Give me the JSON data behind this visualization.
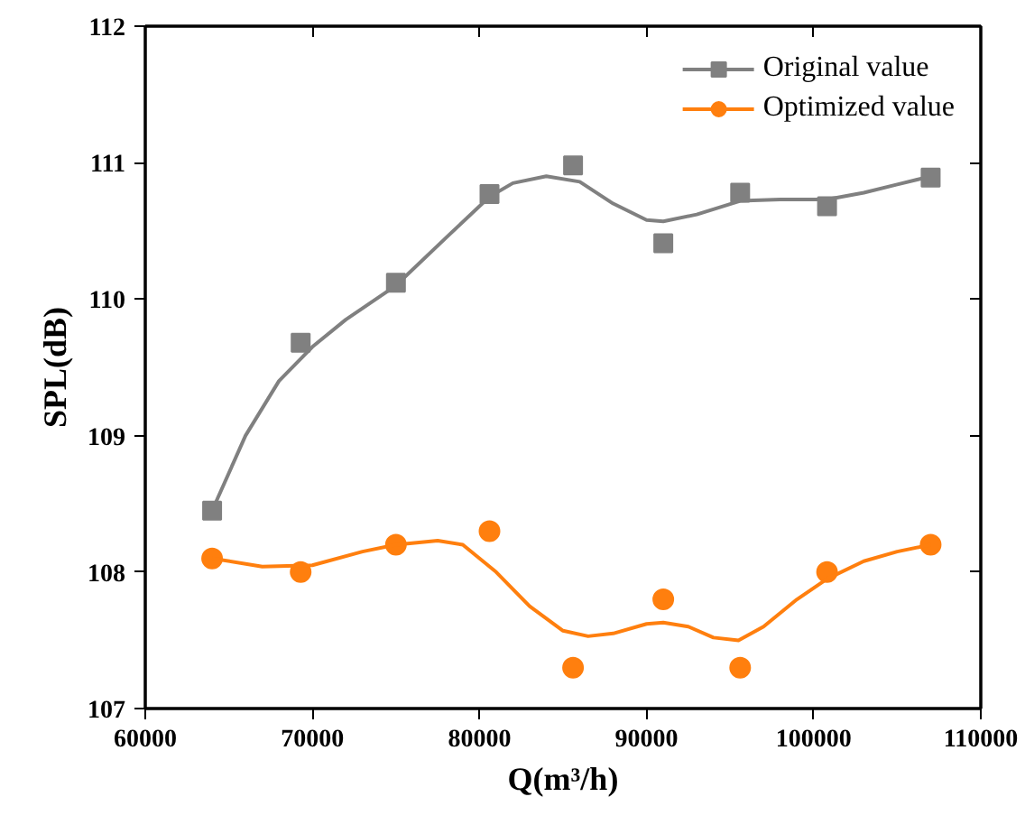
{
  "chart_data": {
    "type": "scatter",
    "xlabel": "Q(m³/h)",
    "ylabel": "SPL(dB)",
    "xlim": [
      60000,
      110000
    ],
    "xticks": [
      60000,
      70000,
      80000,
      90000,
      100000,
      110000
    ],
    "ylim": [
      107,
      112
    ],
    "yticks": [
      107,
      108,
      109,
      110,
      111,
      112
    ],
    "grid": false,
    "legend": "top right",
    "series": [
      {
        "name": "Original value",
        "marker": "square",
        "color": "#808080",
        "x": [
          64000,
          69300,
          75000,
          80600,
          85600,
          91000,
          95600,
          100800,
          107000
        ],
        "values": [
          108.45,
          109.68,
          110.12,
          110.77,
          110.98,
          110.41,
          110.78,
          110.68,
          110.89
        ]
      },
      {
        "type": "line",
        "color": "#808080",
        "x": [
          64000,
          66000,
          68000,
          70000,
          72000,
          75000,
          78000,
          80600,
          82000,
          84000,
          86000,
          88000,
          90000,
          91000,
          93000,
          95600,
          98000,
          100800,
          103000,
          105000,
          107000
        ],
        "values": [
          108.45,
          109.0,
          109.4,
          109.65,
          109.85,
          110.1,
          110.45,
          110.75,
          110.85,
          110.9,
          110.86,
          110.7,
          110.58,
          110.57,
          110.62,
          110.72,
          110.73,
          110.73,
          110.78,
          110.84,
          110.9
        ]
      },
      {
        "name": "Optimized value",
        "marker": "circle",
        "color": "#ff7f0e",
        "x": [
          64000,
          69300,
          75000,
          80600,
          85600,
          91000,
          95600,
          100800,
          107000
        ],
        "values": [
          108.1,
          108.0,
          108.2,
          108.3,
          107.3,
          107.8,
          107.3,
          108.0,
          108.2
        ]
      },
      {
        "type": "line",
        "color": "#ff7f0e",
        "x": [
          64000,
          67000,
          70000,
          73000,
          75000,
          77500,
          79000,
          81000,
          83000,
          85000,
          86500,
          88000,
          90000,
          91000,
          92500,
          94000,
          95500,
          97000,
          99000,
          100800,
          103000,
          105000,
          107000
        ],
        "values": [
          108.1,
          108.04,
          108.05,
          108.15,
          108.2,
          108.23,
          108.2,
          108.0,
          107.75,
          107.57,
          107.53,
          107.55,
          107.62,
          107.63,
          107.6,
          107.52,
          107.5,
          107.6,
          107.8,
          107.95,
          108.08,
          108.15,
          108.2
        ]
      }
    ]
  }
}
